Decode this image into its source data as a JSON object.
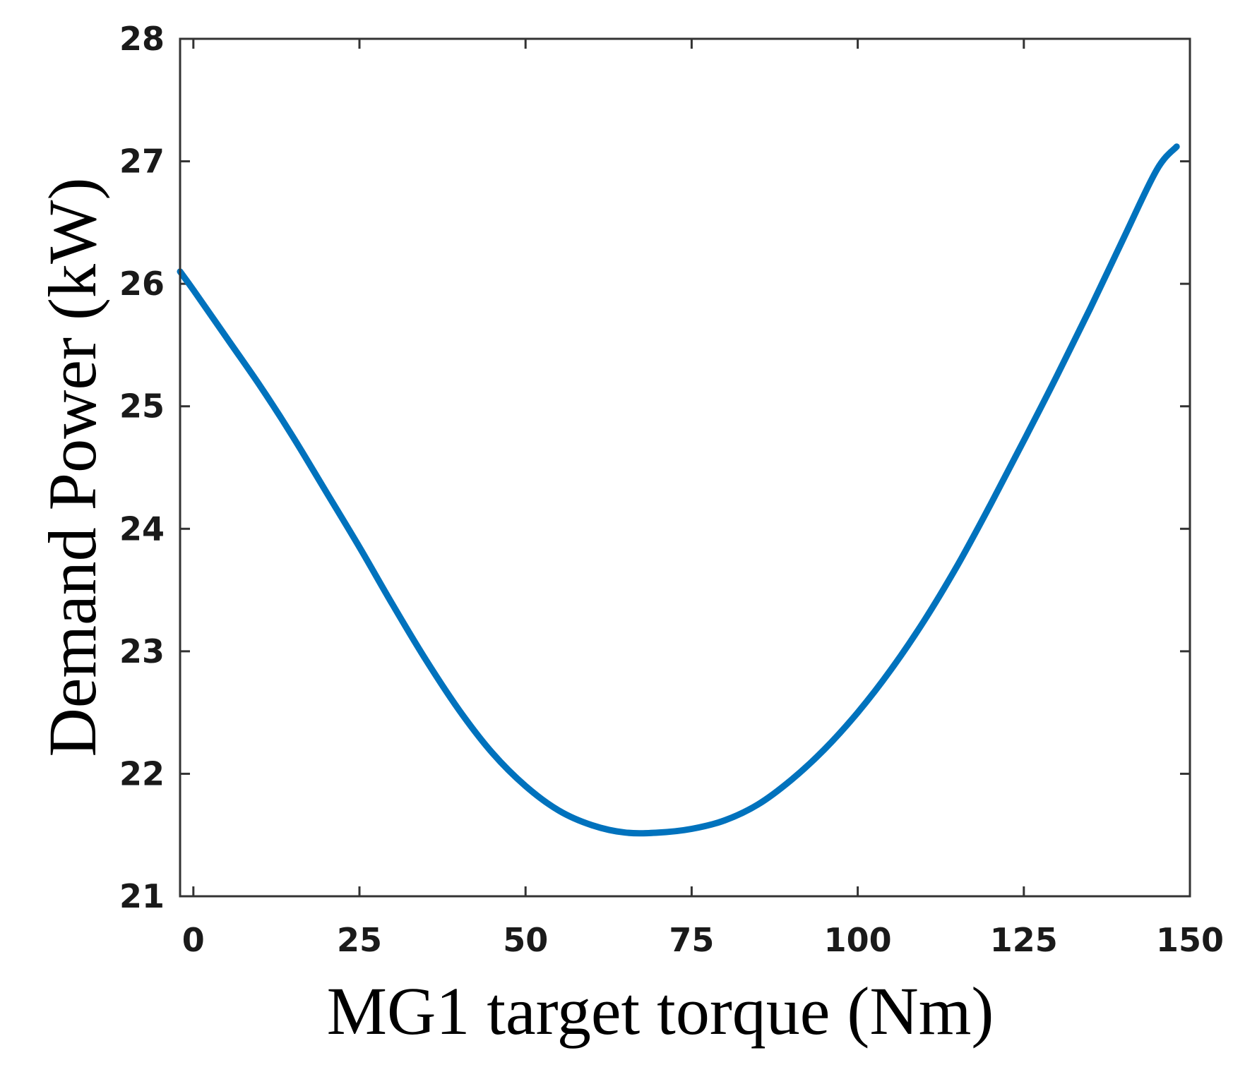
{
  "chart_data": {
    "type": "line",
    "xlabel": "MG1 target torque (Nm)",
    "ylabel": "Demand Power (kW)",
    "xlim": [
      -2,
      150
    ],
    "ylim": [
      21,
      28
    ],
    "x_ticks": [
      0,
      25,
      50,
      75,
      100,
      125,
      150
    ],
    "y_ticks": [
      21,
      22,
      23,
      24,
      25,
      26,
      27,
      28
    ],
    "grid": false,
    "legend": "none",
    "line_color": "#0072bd",
    "series": [
      {
        "x": [
          -2,
          0,
          5,
          10,
          15,
          20,
          25,
          30,
          35,
          40,
          45,
          50,
          55,
          60,
          65,
          70,
          75,
          80,
          85,
          90,
          95,
          100,
          105,
          110,
          115,
          120,
          125,
          130,
          135,
          140,
          145,
          148
        ],
        "y": [
          26.1,
          25.95,
          25.56,
          25.17,
          24.75,
          24.3,
          23.85,
          23.38,
          22.93,
          22.52,
          22.17,
          21.9,
          21.7,
          21.58,
          21.52,
          21.52,
          21.55,
          21.62,
          21.75,
          21.95,
          22.2,
          22.5,
          22.85,
          23.25,
          23.7,
          24.2,
          24.72,
          25.25,
          25.8,
          26.37,
          26.93,
          27.12
        ]
      }
    ]
  }
}
